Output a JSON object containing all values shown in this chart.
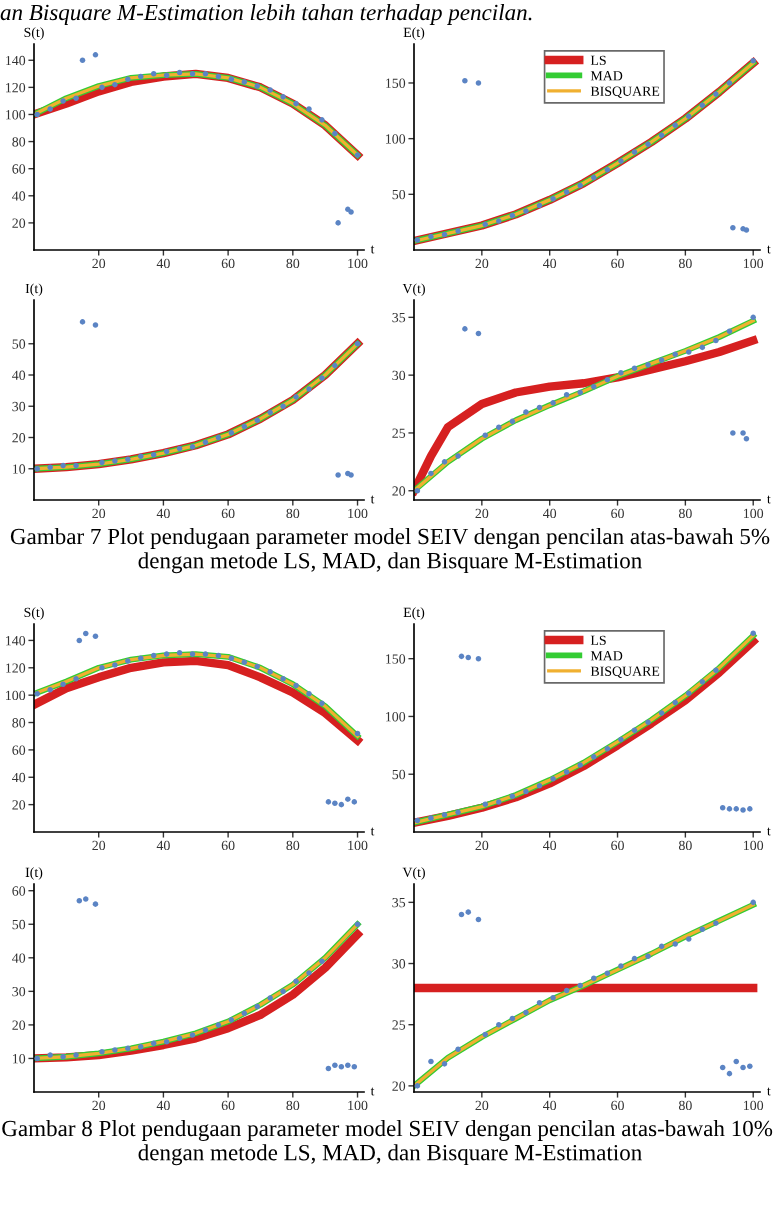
{
  "chart_data": [
    {
      "type": "line",
      "ylabel": "S(t)",
      "xlabel": "t",
      "xlim": [
        0,
        102
      ],
      "ylim": [
        0,
        152
      ],
      "xticks": [
        20,
        40,
        60,
        80,
        100
      ],
      "yticks": [
        20,
        40,
        60,
        80,
        100,
        120,
        140
      ],
      "annotations": [
        "an Bisquare M-Estimation lebih tahan terhadap pencilan."
      ],
      "series": [
        {
          "type": "scatter",
          "color": "#5b84c4",
          "x": [
            1,
            5,
            9,
            13,
            15,
            19,
            21,
            25,
            29,
            33,
            37,
            41,
            45,
            49,
            53,
            57,
            61,
            65,
            69,
            73,
            77,
            81,
            85,
            89,
            93,
            94,
            97,
            98,
            100
          ],
          "values": [
            100,
            104,
            110,
            112,
            140,
            144,
            120,
            122,
            126,
            128,
            130,
            129,
            131,
            130,
            130,
            128,
            126,
            124,
            121,
            118,
            113,
            108,
            104,
            96,
            86,
            20,
            30,
            28,
            70
          ]
        },
        {
          "color": "#d62020",
          "x": [
            0,
            10,
            20,
            30,
            40,
            50,
            60,
            70,
            80,
            90,
            100
          ],
          "values": [
            100,
            108,
            117,
            124,
            128,
            130,
            127,
            120,
            108,
            92,
            70
          ]
        },
        {
          "color": "#33cc33",
          "x": [
            0,
            10,
            20,
            30,
            40,
            50,
            60,
            70,
            80,
            90,
            100
          ],
          "values": [
            100,
            112,
            121,
            127,
            129,
            130,
            127,
            120,
            108,
            92,
            70
          ]
        },
        {
          "color": "#f0b030",
          "x": [
            0,
            10,
            20,
            30,
            40,
            50,
            60,
            70,
            80,
            90,
            100
          ],
          "values": [
            100,
            112,
            121,
            127,
            129,
            130,
            127,
            120,
            108,
            92,
            70
          ]
        }
      ]
    },
    {
      "type": "line",
      "ylabel": "E(t)",
      "xlabel": "t",
      "xlim": [
        0,
        102
      ],
      "ylim": [
        0,
        185
      ],
      "xticks": [
        20,
        40,
        60,
        80,
        100
      ],
      "yticks": [
        50,
        100,
        150
      ],
      "legend": "top",
      "series": [
        {
          "type": "scatter",
          "color": "#5b84c4",
          "x": [
            1,
            5,
            9,
            13,
            15,
            19,
            21,
            25,
            29,
            33,
            37,
            41,
            45,
            49,
            53,
            57,
            61,
            65,
            69,
            73,
            77,
            81,
            85,
            89,
            93,
            94,
            97,
            98,
            100
          ],
          "values": [
            9,
            12,
            14,
            17,
            152,
            150,
            23,
            26,
            31,
            35,
            40,
            46,
            52,
            58,
            65,
            72,
            80,
            88,
            95,
            103,
            112,
            120,
            130,
            140,
            150,
            20,
            19,
            18,
            170
          ]
        },
        {
          "name": "LS",
          "color": "#d62020",
          "x": [
            0,
            10,
            20,
            30,
            40,
            50,
            60,
            70,
            80,
            90,
            100
          ],
          "values": [
            8,
            15,
            22,
            32,
            45,
            60,
            78,
            97,
            118,
            142,
            168
          ]
        },
        {
          "name": "MAD",
          "color": "#33cc33",
          "x": [
            0,
            10,
            20,
            30,
            40,
            50,
            60,
            70,
            80,
            90,
            100
          ],
          "values": [
            8,
            15,
            22,
            32,
            45,
            60,
            78,
            97,
            118,
            142,
            168
          ]
        },
        {
          "name": "BISQUARE",
          "color": "#f0b030",
          "x": [
            0,
            10,
            20,
            30,
            40,
            50,
            60,
            70,
            80,
            90,
            100
          ],
          "values": [
            8,
            15,
            22,
            32,
            45,
            60,
            78,
            97,
            118,
            142,
            168
          ]
        }
      ]
    },
    {
      "type": "line",
      "ylabel": "I(t)",
      "xlabel": "t",
      "xlim": [
        0,
        102
      ],
      "ylim": [
        0,
        64
      ],
      "xticks": [
        20,
        40,
        60,
        80,
        100
      ],
      "yticks": [
        10,
        20,
        30,
        40,
        50
      ],
      "series": [
        {
          "type": "scatter",
          "color": "#5b84c4",
          "x": [
            1,
            5,
            9,
            13,
            15,
            19,
            21,
            25,
            29,
            33,
            37,
            41,
            45,
            49,
            53,
            57,
            61,
            65,
            69,
            73,
            77,
            81,
            85,
            89,
            93,
            94,
            97,
            98,
            100
          ],
          "values": [
            10,
            10.5,
            11,
            11,
            57,
            56,
            12,
            12.5,
            13,
            14,
            14.5,
            15.5,
            16.5,
            17,
            18.5,
            20,
            21.5,
            23.5,
            25.5,
            28,
            30,
            33,
            35.5,
            39,
            43,
            8,
            8.5,
            8,
            50
          ]
        },
        {
          "color": "#d62020",
          "x": [
            0,
            10,
            20,
            30,
            40,
            50,
            60,
            70,
            80,
            90,
            100
          ],
          "values": [
            10,
            10.5,
            11.5,
            13,
            15,
            17.5,
            21,
            26,
            32,
            40,
            50
          ]
        },
        {
          "color": "#33cc33",
          "x": [
            0,
            10,
            20,
            30,
            40,
            50,
            60,
            70,
            80,
            90,
            100
          ],
          "values": [
            10,
            10.5,
            11.5,
            13,
            15,
            17.5,
            21,
            26,
            32,
            40,
            50
          ]
        },
        {
          "color": "#f0b030",
          "x": [
            0,
            10,
            20,
            30,
            40,
            50,
            60,
            70,
            80,
            90,
            100
          ],
          "values": [
            10,
            10.5,
            11.5,
            13,
            15,
            17.5,
            21,
            26,
            32,
            40,
            50
          ]
        }
      ]
    },
    {
      "type": "line",
      "ylabel": "V(t)",
      "xlabel": "t",
      "xlim": [
        0,
        102
      ],
      "ylim": [
        19.2,
        36.5
      ],
      "xticks": [
        20,
        40,
        60,
        80,
        100
      ],
      "yticks": [
        20,
        25,
        30,
        35
      ],
      "annotations": [
        "Gambar 7 Plot pendugaan parameter model SEIV dengan pencilan atas-bawah 5% dengan metode LS, MAD, dan Bisquare M-Estimation"
      ],
      "series": [
        {
          "type": "scatter",
          "color": "#5b84c4",
          "x": [
            1,
            5,
            9,
            13,
            15,
            19,
            21,
            25,
            29,
            33,
            37,
            41,
            45,
            49,
            53,
            57,
            61,
            65,
            69,
            73,
            77,
            81,
            85,
            89,
            93,
            94,
            97,
            98,
            100
          ],
          "values": [
            20,
            21.5,
            22.5,
            23,
            34,
            33.6,
            24.8,
            25.5,
            26,
            26.8,
            27.2,
            27.6,
            28.3,
            28.5,
            29,
            29.6,
            30.2,
            30.6,
            30.9,
            31.3,
            31.8,
            32,
            32.4,
            33,
            33.8,
            25,
            25,
            24.5,
            35
          ]
        },
        {
          "color": "#d62020",
          "x": [
            0,
            5,
            10,
            20,
            30,
            40,
            50,
            60,
            70,
            80,
            90,
            100
          ],
          "values": [
            20,
            23,
            25.5,
            27.5,
            28.5,
            29,
            29.3,
            29.8,
            30.5,
            31.2,
            32,
            33
          ]
        },
        {
          "color": "#33cc33",
          "x": [
            0,
            10,
            20,
            30,
            40,
            50,
            60,
            70,
            80,
            90,
            100
          ],
          "values": [
            20,
            22.5,
            24.5,
            26.1,
            27.4,
            28.6,
            29.9,
            31,
            32.1,
            33.3,
            34.7
          ]
        },
        {
          "color": "#f0b030",
          "x": [
            0,
            10,
            20,
            30,
            40,
            50,
            60,
            70,
            80,
            90,
            100
          ],
          "values": [
            20,
            22.5,
            24.5,
            26.1,
            27.4,
            28.6,
            29.9,
            31,
            32.1,
            33.3,
            34.7
          ]
        }
      ]
    },
    {
      "type": "line",
      "ylabel": "S(t)",
      "xlabel": "t",
      "xlim": [
        0,
        102
      ],
      "ylim": [
        0,
        152
      ],
      "xticks": [
        20,
        40,
        60,
        80,
        100
      ],
      "yticks": [
        20,
        40,
        60,
        80,
        100,
        120,
        140
      ],
      "series": [
        {
          "type": "scatter",
          "color": "#5b84c4",
          "x": [
            1,
            5,
            9,
            13,
            14,
            16,
            19,
            21,
            25,
            29,
            33,
            37,
            41,
            45,
            49,
            53,
            57,
            61,
            65,
            69,
            73,
            77,
            81,
            85,
            89,
            91,
            93,
            95,
            97,
            99,
            100
          ],
          "values": [
            101,
            104,
            108,
            112,
            140,
            145,
            143,
            120,
            122,
            125,
            127,
            129,
            130,
            131,
            130,
            130,
            129,
            127,
            124,
            121,
            117,
            112,
            107,
            101,
            94,
            22,
            21,
            20,
            24,
            22,
            72
          ]
        },
        {
          "color": "#d62020",
          "x": [
            0,
            10,
            20,
            30,
            40,
            50,
            60,
            70,
            80,
            90,
            100
          ],
          "values": [
            93,
            105,
            113,
            120,
            124,
            125,
            122,
            113,
            102,
            87,
            67
          ]
        },
        {
          "color": "#33cc33",
          "x": [
            0,
            10,
            20,
            30,
            40,
            50,
            60,
            70,
            80,
            90,
            100
          ],
          "values": [
            101,
            110,
            120,
            126,
            129,
            130,
            128,
            120,
            108,
            92,
            70
          ]
        },
        {
          "color": "#f0b030",
          "x": [
            0,
            10,
            20,
            30,
            40,
            50,
            60,
            70,
            80,
            90,
            100
          ],
          "values": [
            101,
            110,
            120,
            126,
            129,
            130,
            128,
            120,
            108,
            92,
            70
          ]
        }
      ]
    },
    {
      "type": "line",
      "ylabel": "E(t)",
      "xlabel": "t",
      "xlim": [
        0,
        102
      ],
      "ylim": [
        0,
        180
      ],
      "xticks": [
        20,
        40,
        60,
        80,
        100
      ],
      "yticks": [
        50,
        100,
        150
      ],
      "legend": "top",
      "series": [
        {
          "type": "scatter",
          "color": "#5b84c4",
          "x": [
            1,
            5,
            9,
            13,
            14,
            16,
            19,
            21,
            25,
            29,
            33,
            37,
            41,
            45,
            49,
            53,
            57,
            61,
            65,
            69,
            73,
            77,
            81,
            85,
            89,
            91,
            93,
            95,
            97,
            99,
            100
          ],
          "values": [
            10,
            12,
            15,
            17,
            152,
            151,
            150,
            24,
            26,
            31,
            35,
            40,
            46,
            52,
            58,
            65,
            72,
            80,
            88,
            95,
            103,
            112,
            120,
            130,
            140,
            21,
            20,
            20,
            19,
            20,
            172
          ]
        },
        {
          "name": "LS",
          "color": "#d62020",
          "x": [
            0,
            10,
            20,
            30,
            40,
            50,
            60,
            70,
            80,
            90,
            100
          ],
          "values": [
            8,
            14,
            21,
            30,
            42,
            57,
            75,
            94,
            114,
            138,
            165
          ]
        },
        {
          "name": "MAD",
          "color": "#33cc33",
          "x": [
            0,
            10,
            20,
            30,
            40,
            50,
            60,
            70,
            80,
            90,
            100
          ],
          "values": [
            8,
            15,
            22,
            32,
            45,
            60,
            78,
            97,
            118,
            142,
            170
          ]
        },
        {
          "name": "BISQUARE",
          "color": "#f0b030",
          "x": [
            0,
            10,
            20,
            30,
            40,
            50,
            60,
            70,
            80,
            90,
            100
          ],
          "values": [
            8,
            15,
            22,
            32,
            45,
            60,
            78,
            97,
            118,
            142,
            170
          ]
        }
      ]
    },
    {
      "type": "line",
      "ylabel": "I(t)",
      "xlabel": "t",
      "xlim": [
        0,
        102
      ],
      "ylim": [
        0,
        62
      ],
      "xticks": [
        20,
        40,
        60,
        80,
        100
      ],
      "yticks": [
        10,
        20,
        30,
        40,
        50,
        60
      ],
      "series": [
        {
          "type": "scatter",
          "color": "#5b84c4",
          "x": [
            1,
            5,
            9,
            13,
            14,
            16,
            19,
            21,
            25,
            29,
            33,
            37,
            41,
            45,
            49,
            53,
            57,
            61,
            65,
            69,
            73,
            77,
            81,
            85,
            89,
            91,
            93,
            95,
            97,
            99,
            100
          ],
          "values": [
            10,
            11,
            10.5,
            11,
            57,
            57.5,
            56,
            12,
            12.5,
            13,
            13.5,
            14.5,
            15,
            16,
            17,
            18.5,
            20,
            21.5,
            23.5,
            25.5,
            28,
            30,
            33,
            35.5,
            39,
            7,
            8,
            7.5,
            8,
            7.5,
            50
          ]
        },
        {
          "color": "#d62020",
          "x": [
            0,
            10,
            20,
            30,
            40,
            50,
            60,
            70,
            80,
            90,
            100
          ],
          "values": [
            10,
            10.3,
            11,
            12.3,
            14,
            16,
            19,
            23,
            29,
            37,
            47
          ]
        },
        {
          "color": "#33cc33",
          "x": [
            0,
            10,
            20,
            30,
            40,
            50,
            60,
            70,
            80,
            90,
            100
          ],
          "values": [
            10,
            10.5,
            11.5,
            13,
            15,
            17.5,
            21,
            26,
            32,
            40,
            50
          ]
        },
        {
          "color": "#f0b030",
          "x": [
            0,
            10,
            20,
            30,
            40,
            50,
            60,
            70,
            80,
            90,
            100
          ],
          "values": [
            10,
            10.5,
            11.5,
            13,
            15,
            17.5,
            21,
            26,
            32,
            40,
            50
          ]
        }
      ]
    },
    {
      "type": "line",
      "ylabel": "V(t)",
      "xlabel": "t",
      "xlim": [
        0,
        102
      ],
      "ylim": [
        19.5,
        36.5
      ],
      "xticks": [
        20,
        40,
        60,
        80,
        100
      ],
      "yticks": [
        20,
        25,
        30,
        35
      ],
      "annotations": [
        "Gambar 8 Plot pendugaan parameter model SEIV dengan pencilan atas-bawah 10%  dengan metode LS, MAD, dan Bisquare M-Estimation"
      ],
      "series": [
        {
          "type": "scatter",
          "color": "#5b84c4",
          "x": [
            1,
            5,
            9,
            13,
            14,
            16,
            19,
            21,
            25,
            29,
            33,
            37,
            41,
            45,
            49,
            53,
            57,
            61,
            65,
            69,
            73,
            77,
            81,
            85,
            89,
            91,
            93,
            95,
            97,
            99,
            100
          ],
          "values": [
            20,
            22,
            21.8,
            23,
            34,
            34.2,
            33.6,
            24.2,
            25,
            25.5,
            26,
            26.8,
            27.2,
            27.8,
            28.2,
            28.8,
            29.2,
            29.8,
            30.4,
            30.6,
            31.4,
            31.6,
            32,
            32.8,
            33.3,
            21.5,
            21,
            22,
            21.5,
            21.6,
            35
          ]
        },
        {
          "color": "#d62020",
          "x": [
            0,
            100
          ],
          "values": [
            28,
            28
          ]
        },
        {
          "color": "#33cc33",
          "x": [
            0,
            10,
            20,
            30,
            40,
            50,
            60,
            70,
            80,
            90,
            100
          ],
          "values": [
            20,
            22.3,
            24,
            25.5,
            27,
            28.2,
            29.5,
            30.8,
            32.2,
            33.5,
            34.8
          ]
        },
        {
          "color": "#f0b030",
          "x": [
            0,
            10,
            20,
            30,
            40,
            50,
            60,
            70,
            80,
            90,
            100
          ],
          "values": [
            20,
            22.3,
            24,
            25.5,
            27,
            28.2,
            29.5,
            30.8,
            32.2,
            33.5,
            34.8
          ]
        }
      ]
    }
  ]
}
